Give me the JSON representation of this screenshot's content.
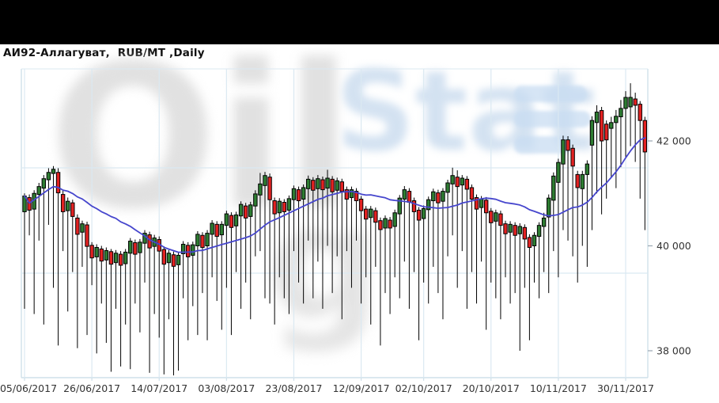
{
  "header": {
    "title": "АИ92-Аллагуват,  RUB/MT ,Daily"
  },
  "watermark": {
    "word_gray": "Oil",
    "letter_gray": "g",
    "word_blue": "Stat"
  },
  "axes": {
    "y_side": "right",
    "y_ticks": [
      {
        "label": "42 000",
        "value": 42000
      },
      {
        "label": "40 000",
        "value": 40000
      },
      {
        "label": "38 000",
        "value": 38000
      }
    ],
    "x_ticks": [
      {
        "label": "05/06/2017",
        "index": 0
      },
      {
        "label": "26/06/2017",
        "index": 14
      },
      {
        "label": "14/07/2017",
        "index": 28
      },
      {
        "label": "03/08/2017",
        "index": 42
      },
      {
        "label": "23/08/2017",
        "index": 56
      },
      {
        "label": "12/09/2017",
        "index": 70
      },
      {
        "label": "02/10/2017",
        "index": 83
      },
      {
        "label": "20/10/2017",
        "index": 97
      },
      {
        "label": "10/11/2017",
        "index": 111
      },
      {
        "label": "30/11/2017",
        "index": 125
      }
    ]
  },
  "chart_data": {
    "type": "candlestick",
    "title": "АИ92-Аллагуват",
    "price_unit": "RUB/MT",
    "timeframe": "Daily",
    "grid": true,
    "legend": "none",
    "ylim": [
      37450,
      43450
    ],
    "up_color": "#2e7d32",
    "down_color": "#e32222",
    "wick_color": "#000000",
    "grid_color": "#dbe9f2",
    "axis_text_color": "#333333",
    "ma": {
      "type": "SMA",
      "window": 20,
      "color": "#4646cd"
    },
    "x_tick_dates": [
      "05/06/2017",
      "26/06/2017",
      "14/07/2017",
      "03/08/2017",
      "23/08/2017",
      "12/09/2017",
      "02/10/2017",
      "20/10/2017",
      "10/11/2017",
      "30/11/2017"
    ],
    "x_tick_indices": [
      0,
      14,
      28,
      42,
      56,
      70,
      83,
      97,
      111,
      125
    ],
    "candles_ohlc": [
      [
        40650,
        41000,
        38800,
        40950
      ],
      [
        40920,
        40980,
        40200,
        40680
      ],
      [
        40700,
        41060,
        38700,
        41000
      ],
      [
        40980,
        41200,
        40100,
        41130
      ],
      [
        41100,
        41350,
        38500,
        41280
      ],
      [
        41260,
        41480,
        40400,
        41400
      ],
      [
        41380,
        41520,
        39200,
        41460
      ],
      [
        41400,
        41480,
        38100,
        41010
      ],
      [
        40980,
        41050,
        39900,
        40650
      ],
      [
        40670,
        40920,
        38750,
        40850
      ],
      [
        40820,
        40880,
        39500,
        40560
      ],
      [
        40530,
        40600,
        38050,
        40220
      ],
      [
        40260,
        40480,
        39600,
        40420
      ],
      [
        40400,
        40460,
        38300,
        39990
      ],
      [
        40010,
        40070,
        39250,
        39770
      ],
      [
        39790,
        40030,
        37950,
        39970
      ],
      [
        39940,
        40000,
        38900,
        39710
      ],
      [
        39730,
        39970,
        38150,
        39910
      ],
      [
        39890,
        39940,
        37600,
        39650
      ],
      [
        39680,
        39920,
        38800,
        39860
      ],
      [
        39840,
        39900,
        37700,
        39630
      ],
      [
        39660,
        39940,
        38500,
        39880
      ],
      [
        39860,
        40150,
        37650,
        40090
      ],
      [
        40060,
        40120,
        38900,
        39840
      ],
      [
        39870,
        40130,
        38350,
        40070
      ],
      [
        40050,
        40300,
        39300,
        40240
      ],
      [
        40210,
        40270,
        37580,
        39960
      ],
      [
        39990,
        40210,
        38700,
        40150
      ],
      [
        40120,
        40180,
        38250,
        39900
      ],
      [
        39930,
        39990,
        37550,
        39650
      ],
      [
        39680,
        39920,
        38600,
        39860
      ],
      [
        39830,
        39890,
        37530,
        39610
      ],
      [
        39640,
        39880,
        37620,
        39820
      ],
      [
        39850,
        40090,
        39000,
        40030
      ],
      [
        40010,
        40070,
        38200,
        39790
      ],
      [
        39820,
        40080,
        38850,
        40020
      ],
      [
        40000,
        40280,
        38300,
        40220
      ],
      [
        40200,
        40260,
        39100,
        39970
      ],
      [
        40000,
        40300,
        38200,
        40240
      ],
      [
        40220,
        40490,
        39400,
        40430
      ],
      [
        40410,
        40470,
        38950,
        40180
      ],
      [
        40210,
        40470,
        38400,
        40410
      ],
      [
        40390,
        40670,
        39200,
        40610
      ],
      [
        40580,
        40640,
        38300,
        40350
      ],
      [
        40380,
        40650,
        39500,
        40590
      ],
      [
        40570,
        40850,
        38800,
        40790
      ],
      [
        40760,
        40820,
        39300,
        40530
      ],
      [
        40560,
        40840,
        38600,
        40780
      ],
      [
        40760,
        41060,
        39800,
        40990
      ],
      [
        40970,
        41390,
        39900,
        41180
      ],
      [
        41150,
        41410,
        39000,
        41340
      ],
      [
        41310,
        41380,
        38900,
        40880
      ],
      [
        40860,
        40920,
        38500,
        40610
      ],
      [
        40630,
        40910,
        39400,
        40850
      ],
      [
        40830,
        40890,
        39000,
        40650
      ],
      [
        40680,
        40960,
        38700,
        40900
      ],
      [
        40880,
        41150,
        39900,
        41090
      ],
      [
        41070,
        41130,
        39300,
        40860
      ],
      [
        40890,
        41170,
        38900,
        41110
      ],
      [
        41090,
        41340,
        40100,
        41270
      ],
      [
        41250,
        41310,
        39000,
        41060
      ],
      [
        41090,
        41350,
        39700,
        41280
      ],
      [
        41260,
        41320,
        38800,
        41070
      ],
      [
        41100,
        41450,
        40000,
        41290
      ],
      [
        41270,
        41330,
        39100,
        41030
      ],
      [
        41060,
        41300,
        39800,
        41240
      ],
      [
        41220,
        41280,
        38600,
        41040
      ],
      [
        41070,
        41130,
        39900,
        40890
      ],
      [
        40920,
        41130,
        39200,
        41070
      ],
      [
        41040,
        41100,
        40100,
        40860
      ],
      [
        40890,
        40950,
        38900,
        40670
      ],
      [
        40700,
        40760,
        39400,
        40510
      ],
      [
        40540,
        40760,
        38500,
        40700
      ],
      [
        40670,
        40730,
        39600,
        40450
      ],
      [
        40480,
        40540,
        38100,
        40310
      ],
      [
        40340,
        40580,
        39100,
        40520
      ],
      [
        40490,
        40550,
        38700,
        40340
      ],
      [
        40370,
        40690,
        39400,
        40630
      ],
      [
        40610,
        40970,
        39000,
        40910
      ],
      [
        40890,
        41140,
        39700,
        41070
      ],
      [
        41040,
        41100,
        38800,
        40830
      ],
      [
        40860,
        40920,
        39500,
        40650
      ],
      [
        40680,
        40740,
        38200,
        40490
      ],
      [
        40520,
        40770,
        39300,
        40710
      ],
      [
        40690,
        40940,
        38900,
        40880
      ],
      [
        40860,
        41090,
        39600,
        41030
      ],
      [
        41010,
        41070,
        39100,
        40820
      ],
      [
        40850,
        41100,
        38600,
        41040
      ],
      [
        41020,
        41260,
        39800,
        41200
      ],
      [
        41180,
        41490,
        40200,
        41340
      ],
      [
        41310,
        41440,
        39200,
        41130
      ],
      [
        41160,
        41350,
        39900,
        41290
      ],
      [
        41270,
        41330,
        38800,
        41080
      ],
      [
        41110,
        41170,
        39500,
        40890
      ],
      [
        40920,
        40980,
        38900,
        40700
      ],
      [
        40730,
        40950,
        39700,
        40890
      ],
      [
        40870,
        40930,
        38400,
        40630
      ],
      [
        40660,
        40720,
        39300,
        40440
      ],
      [
        40470,
        40690,
        39000,
        40630
      ],
      [
        40610,
        40670,
        38600,
        40390
      ],
      [
        40420,
        40480,
        39400,
        40230
      ],
      [
        40260,
        40470,
        38900,
        40410
      ],
      [
        40390,
        40450,
        39100,
        40200
      ],
      [
        40230,
        40430,
        38000,
        40370
      ],
      [
        40350,
        40410,
        39200,
        40130
      ],
      [
        40160,
        40220,
        38200,
        39970
      ],
      [
        40000,
        40260,
        39300,
        40200
      ],
      [
        40180,
        40450,
        39000,
        40390
      ],
      [
        40370,
        40630,
        39500,
        40530
      ],
      [
        40550,
        40980,
        39100,
        40910
      ],
      [
        40870,
        41400,
        39900,
        41330
      ],
      [
        41210,
        41660,
        39400,
        41590
      ],
      [
        41560,
        42100,
        40300,
        42020
      ],
      [
        42020,
        42090,
        40100,
        41820
      ],
      [
        41860,
        41930,
        39800,
        41520
      ],
      [
        41360,
        41430,
        39300,
        41110
      ],
      [
        41090,
        41430,
        40000,
        41360
      ],
      [
        41360,
        41630,
        39600,
        41560
      ],
      [
        41920,
        42470,
        40300,
        42390
      ],
      [
        42350,
        42680,
        41000,
        42550
      ],
      [
        42580,
        42650,
        40600,
        42000
      ],
      [
        42320,
        42390,
        40900,
        42020
      ],
      [
        42240,
        42460,
        41300,
        42350
      ],
      [
        42350,
        42590,
        41100,
        42470
      ],
      [
        42460,
        42780,
        41500,
        42620
      ],
      [
        42620,
        42950,
        41700,
        42830
      ],
      [
        42650,
        43100,
        41900,
        42830
      ],
      [
        42800,
        42920,
        41600,
        42680
      ],
      [
        42700,
        42760,
        40900,
        42390
      ],
      [
        42390,
        42460,
        40300,
        41790
      ]
    ]
  }
}
